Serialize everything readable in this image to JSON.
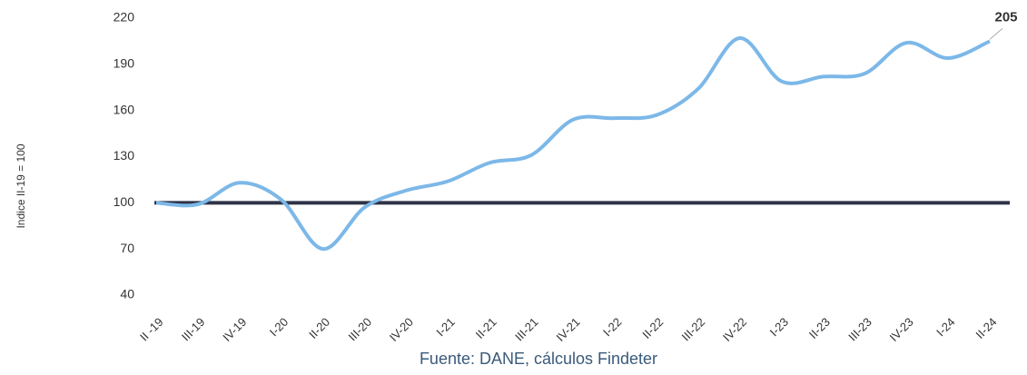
{
  "chart_data": {
    "type": "line",
    "y_axis_label": "Indice II-19 = 100",
    "source": "Fuente: DANE, cálculos Findeter",
    "categories": [
      "II -19",
      "III-19",
      "IV-19",
      "I-20",
      "II-20",
      "III-20",
      "IV-20",
      "I-21",
      "II-21",
      "III-21",
      "IV-21",
      "I-22",
      "II-22",
      "III-22",
      "IV-22",
      "I-23",
      "II-23",
      "III-23",
      "IV-23",
      "I-24",
      "II-24"
    ],
    "series": [
      {
        "color": "#7cb8e8",
        "values": [
          100,
          99,
          113,
          102,
          70,
          97,
          108,
          114,
          126,
          131,
          154,
          155,
          157,
          174,
          207,
          179,
          182,
          184,
          204,
          194,
          205
        ]
      }
    ],
    "reference_line": {
      "value": 100,
      "color": "#2f3347"
    },
    "ylim": [
      40,
      220
    ],
    "yticks": [
      40,
      70,
      100,
      130,
      160,
      190,
      220
    ],
    "grid": false
  }
}
